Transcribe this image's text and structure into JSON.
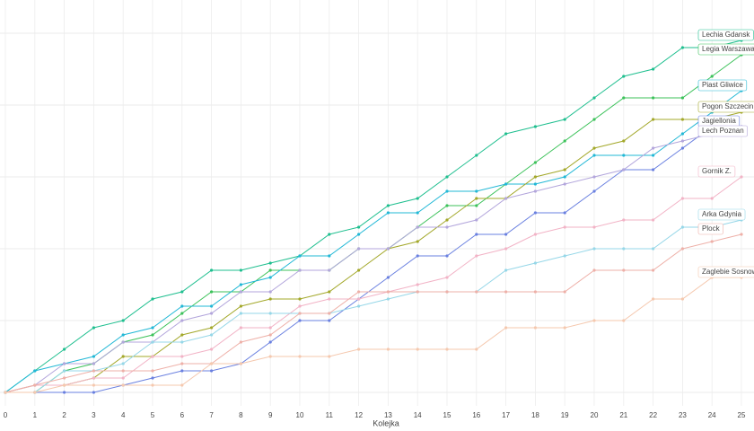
{
  "chart_data": {
    "type": "line",
    "x_label": "Kolejka",
    "x": [
      0,
      1,
      2,
      3,
      4,
      5,
      6,
      7,
      8,
      9,
      10,
      11,
      12,
      13,
      14,
      15,
      16,
      17,
      18,
      19,
      20,
      21,
      22,
      23,
      24,
      25
    ],
    "xlim": [
      0,
      25
    ],
    "ylim": [
      0,
      55
    ],
    "yticks": [
      0,
      10,
      20,
      30,
      40,
      50
    ],
    "grid": true,
    "series": [
      {
        "name": "Lechia Gdansk",
        "color": "#1fbf8f",
        "values": [
          0,
          3,
          6,
          9,
          10,
          13,
          14,
          17,
          17,
          18,
          19,
          22,
          23,
          26,
          27,
          30,
          33,
          36,
          37,
          38,
          41,
          44,
          45,
          48,
          48,
          49
        ]
      },
      {
        "name": "Legia Warszawa",
        "color": "#3cc25a",
        "values": [
          0,
          0,
          3,
          4,
          7,
          8,
          11,
          14,
          14,
          17,
          17,
          17,
          20,
          20,
          23,
          26,
          26,
          29,
          32,
          35,
          38,
          41,
          41,
          41,
          44,
          47
        ]
      },
      {
        "name": "Piast Gliwice",
        "color": "#22b8d6",
        "values": [
          0,
          3,
          4,
          5,
          8,
          9,
          12,
          12,
          15,
          16,
          19,
          19,
          22,
          25,
          25,
          28,
          28,
          29,
          29,
          30,
          33,
          33,
          33,
          36,
          39,
          42
        ]
      },
      {
        "name": "Pogon Szczecin",
        "color": "#a3a82a",
        "values": [
          0,
          1,
          1,
          2,
          5,
          5,
          8,
          9,
          12,
          13,
          13,
          14,
          17,
          20,
          21,
          24,
          27,
          27,
          30,
          31,
          34,
          35,
          38,
          38,
          38,
          39
        ]
      },
      {
        "name": "Jagiellonia",
        "color": "#6a80e0",
        "values": [
          0,
          0,
          0,
          0,
          1,
          2,
          3,
          3,
          4,
          7,
          10,
          10,
          13,
          16,
          19,
          19,
          22,
          22,
          25,
          25,
          28,
          31,
          31,
          34,
          37,
          37
        ]
      },
      {
        "name": "Lech Poznan",
        "color": "#b3a6dc",
        "values": [
          0,
          1,
          4,
          4,
          7,
          7,
          10,
          11,
          14,
          14,
          17,
          17,
          20,
          20,
          23,
          23,
          24,
          27,
          28,
          29,
          30,
          31,
          34,
          35,
          36,
          37
        ]
      },
      {
        "name": "Gornik Z.",
        "color": "#f2b3c6",
        "values": [
          0,
          1,
          1,
          2,
          2,
          5,
          5,
          6,
          9,
          9,
          12,
          13,
          13,
          14,
          15,
          16,
          19,
          20,
          22,
          23,
          23,
          24,
          24,
          27,
          27,
          30
        ]
      },
      {
        "name": "Arka Gdynia",
        "color": "#96d7e8",
        "values": [
          0,
          0,
          3,
          3,
          4,
          7,
          7,
          8,
          11,
          11,
          11,
          11,
          12,
          13,
          14,
          14,
          14,
          17,
          18,
          19,
          20,
          20,
          20,
          23,
          23,
          24
        ]
      },
      {
        "name": "Plock",
        "color": "#eeb0a8",
        "values": [
          0,
          1,
          2,
          3,
          3,
          3,
          4,
          4,
          7,
          8,
          11,
          11,
          14,
          14,
          14,
          14,
          14,
          14,
          14,
          14,
          17,
          17,
          17,
          20,
          21,
          22
        ]
      },
      {
        "name": "Zaglebie Sosnowiec",
        "color": "#f5c8ae",
        "values": [
          0,
          0,
          1,
          1,
          1,
          1,
          1,
          4,
          4,
          5,
          5,
          5,
          6,
          6,
          6,
          6,
          6,
          9,
          9,
          9,
          10,
          10,
          13,
          13,
          16,
          16
        ]
      }
    ]
  }
}
